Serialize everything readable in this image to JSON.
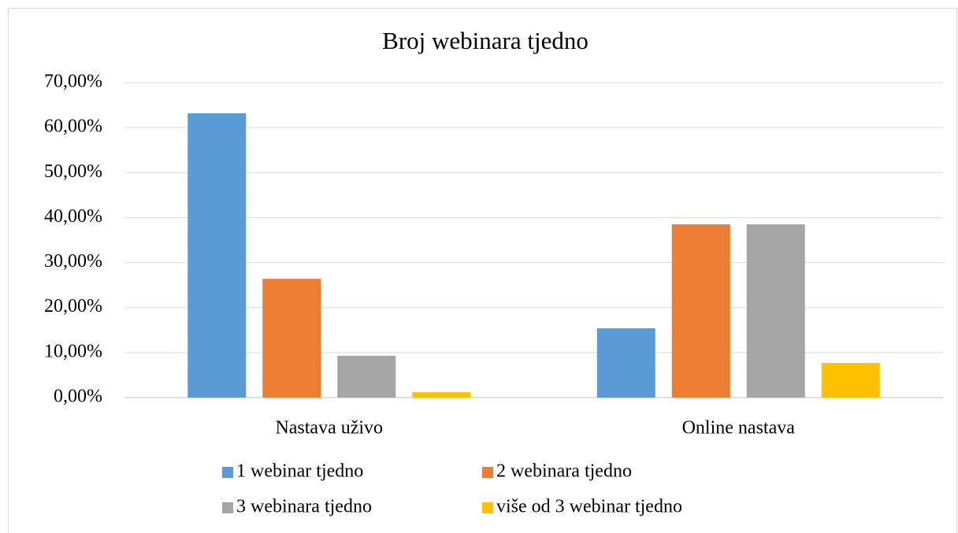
{
  "chart_data": {
    "type": "bar",
    "title": "Broj webinara tjedno",
    "categories": [
      "Nastava uživo",
      "Online nastava"
    ],
    "series": [
      {
        "name": "1 webinar tjedno",
        "color": "#5b9bd5",
        "values": [
          63.2,
          15.4
        ]
      },
      {
        "name": "2 webinara tjedno",
        "color": "#ed7d31",
        "values": [
          26.4,
          38.5
        ]
      },
      {
        "name": "3 webinara tjedno",
        "color": "#a5a5a5",
        "values": [
          9.3,
          38.5
        ]
      },
      {
        "name": "više od 3 webinar tjedno",
        "color": "#ffc000",
        "values": [
          1.2,
          7.7
        ]
      }
    ],
    "ylim": [
      0,
      70
    ],
    "yticks": [
      {
        "value": 0,
        "label": "0,00%"
      },
      {
        "value": 10,
        "label": "10,00%"
      },
      {
        "value": 20,
        "label": "20,00%"
      },
      {
        "value": 30,
        "label": "30,00%"
      },
      {
        "value": 40,
        "label": "40,00%"
      },
      {
        "value": 50,
        "label": "50,00%"
      },
      {
        "value": 60,
        "label": "60,00%"
      },
      {
        "value": 70,
        "label": "70,00%"
      }
    ],
    "grid": true,
    "legend": "bottom"
  }
}
